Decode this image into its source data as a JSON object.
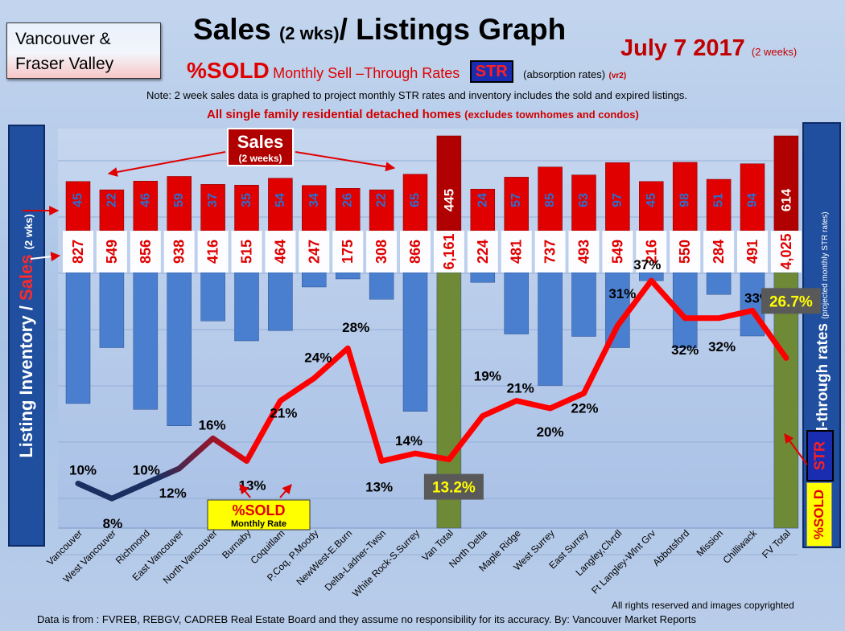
{
  "header": {
    "region_line1": "Vancouver &",
    "region_line2": "Fraser Valley",
    "title_a": "Sales",
    "title_b": "(2 wks)",
    "title_c": "/ Listings Graph",
    "date": "July 7 2017",
    "date_note": "(2 weeks)",
    "subtitle_sold": "%SOLD",
    "subtitle_rates": "Monthly Sell –Through Rates",
    "str_badge": "STR",
    "subtitle_absorption": "(absorption rates)",
    "version": "(vr2)",
    "note": "Note: 2 week sales data is graphed to project monthly STR rates and inventory includes the sold and expired listings.",
    "scope_main": "All single family residential detached homes",
    "scope_note": "(excludes townhomes and condos)"
  },
  "panels": {
    "left_a": "Listing Inventory",
    "left_b": "/",
    "left_c": "Sales",
    "left_d": "(2  wks)",
    "right_a": "Sell-through rates",
    "right_b": "(projected monthly STR rates)",
    "str_vertical": "STR",
    "sold_vertical": "%SOLD"
  },
  "callouts": {
    "sales_line1": "Sales",
    "sales_line2": "(2 weeks)",
    "sold_line1": "%SOLD",
    "sold_line2": "Monthly Rate"
  },
  "footer": {
    "rights": "All rights reserved and  images copyrighted",
    "source": "Data is from : FVREB, REBGV, CADREB Real Estate Board and they assume no responsibility for its accuracy. By: Vancouver Market Reports"
  },
  "colors": {
    "sales_bar": "#e00000",
    "sales_total_bar": "#b00000",
    "listings_bar": "#4a7fcf",
    "total_listings_bar": "#6e8a36",
    "str_line_low": "#1b3060",
    "str_line": "#ff0000",
    "total_label_bg": "#595959",
    "total_label_text": "#ffff00"
  },
  "chart_data": {
    "type": "bar",
    "categories": [
      "Vancouver",
      "West Vancouver",
      "Richmond",
      "East Vancouver",
      "North Vancouver",
      "Burnaby",
      "Coquitlam",
      "P.Coq, P.Moody",
      "NewWest-E.Burn",
      "Delta-Ladner-Twsn",
      "White Rock-S.Surrey",
      "Van Total",
      "North Delta",
      "Maple Ridge",
      "West Surrey",
      "East Surrey",
      "Langley,Clvrdl",
      "Ft Langley-Wlnt Grv",
      "Abbotsford",
      "Mission",
      "Chilliwack",
      "FV Total"
    ],
    "series": [
      {
        "name": "Sales",
        "values": [
          45,
          22,
          46,
          59,
          37,
          35,
          54,
          34,
          26,
          22,
          65,
          445,
          24,
          57,
          85,
          63,
          97,
          45,
          98,
          51,
          94,
          614
        ]
      },
      {
        "name": "Listing Inventory",
        "values": [
          "827",
          "549",
          "856",
          "938",
          "416",
          "515",
          "464",
          "247",
          "175",
          "308",
          "866",
          "6,161",
          "224",
          "481",
          "737",
          "493",
          "549",
          "216",
          "550",
          "284",
          "491",
          "4,025"
        ]
      },
      {
        "name": "STR",
        "values": [
          "10%",
          "8%",
          "10%",
          "12%",
          "16%",
          "13%",
          "21%",
          "24%",
          "28%",
          "13%",
          "14%",
          "13.2%",
          "19%",
          "21%",
          "20%",
          "22%",
          "31%",
          "37%",
          "32%",
          "32%",
          "33%",
          "26.7%"
        ]
      }
    ]
  }
}
